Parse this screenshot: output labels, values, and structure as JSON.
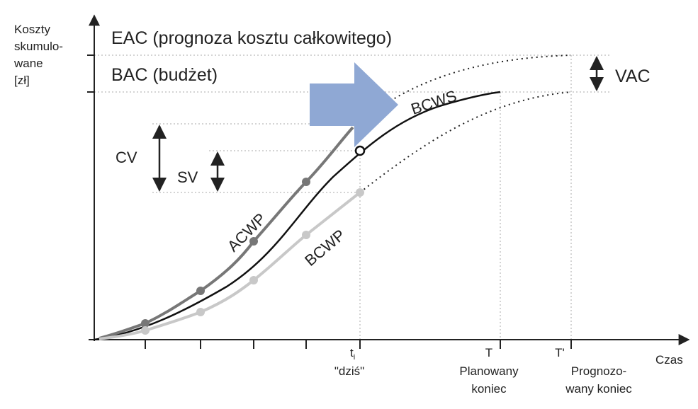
{
  "y_axis_label": [
    "Koszty",
    "skumulo-",
    "wane",
    "[zł]"
  ],
  "eac": "EAC (prognoza kosztu całkowitego)",
  "bac": "BAC (budżet)",
  "vac": "VAC",
  "bcws": "BCWS",
  "acwp": "ACWP",
  "bcwp": "BCWP",
  "cv": "CV",
  "sv": "SV",
  "x_axis_label": "Czas",
  "today": {
    "symbol": "t",
    "subscript": "i",
    "label": "\"dziś\""
  },
  "planned_end": {
    "symbol": "T",
    "label": [
      "Planowany",
      "koniec"
    ]
  },
  "forecast_end": {
    "symbol": "T'",
    "label": [
      "Prognozo-",
      "wany koniec"
    ]
  }
}
